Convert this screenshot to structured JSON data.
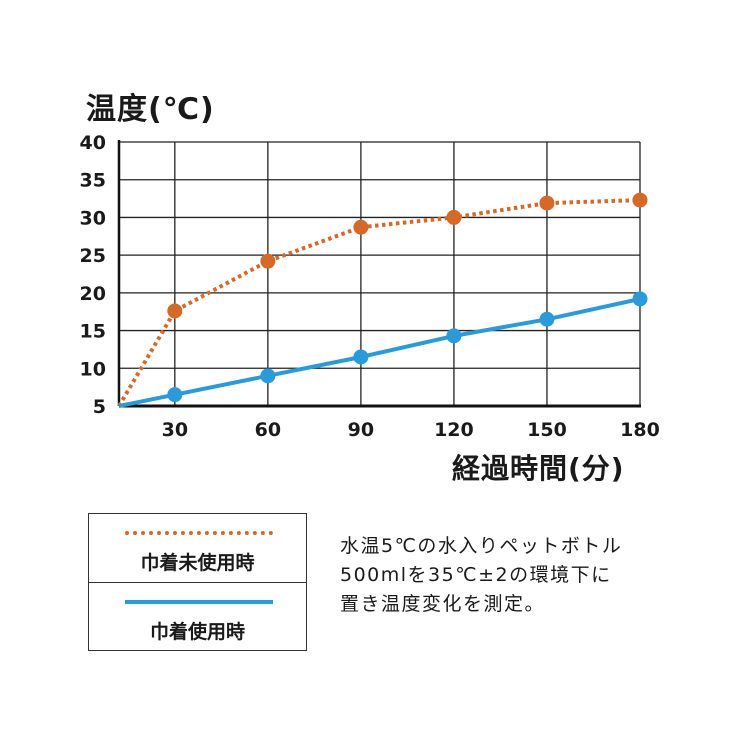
{
  "chart_data": {
    "type": "line",
    "ylabel": "温度(℃)",
    "xlabel": "経過時間(分)",
    "x_ticks": [
      "30",
      "60",
      "90",
      "120",
      "150",
      "180"
    ],
    "y_ticks": [
      "5",
      "10",
      "15",
      "20",
      "25",
      "30",
      "35",
      "40"
    ],
    "xlim": [
      12,
      180
    ],
    "ylim": [
      5,
      40
    ],
    "grid": true,
    "series": [
      {
        "name": "巾着未使用時",
        "style": "dotted",
        "color": "#d4692a",
        "x": [
          12,
          30,
          60,
          90,
          120,
          150,
          180
        ],
        "y": [
          5,
          17.6,
          24.2,
          28.7,
          30.0,
          31.9,
          32.3
        ],
        "markers": [
          false,
          true,
          true,
          true,
          true,
          true,
          true
        ]
      },
      {
        "name": "巾着使用時",
        "style": "solid",
        "color": "#2b9ad8",
        "x": [
          12,
          30,
          60,
          90,
          120,
          150,
          180
        ],
        "y": [
          5,
          6.5,
          9.0,
          11.5,
          14.3,
          16.5,
          19.2
        ],
        "markers": [
          false,
          true,
          true,
          true,
          true,
          true,
          true
        ]
      }
    ]
  },
  "legend": {
    "items": [
      {
        "label": "巾着未使用時"
      },
      {
        "label": "巾着使用時"
      }
    ]
  },
  "note": {
    "lines": [
      "水温5℃の水入りペットボトル",
      "500mlを35℃±2の環境下に",
      "置き温度変化を測定。"
    ]
  }
}
